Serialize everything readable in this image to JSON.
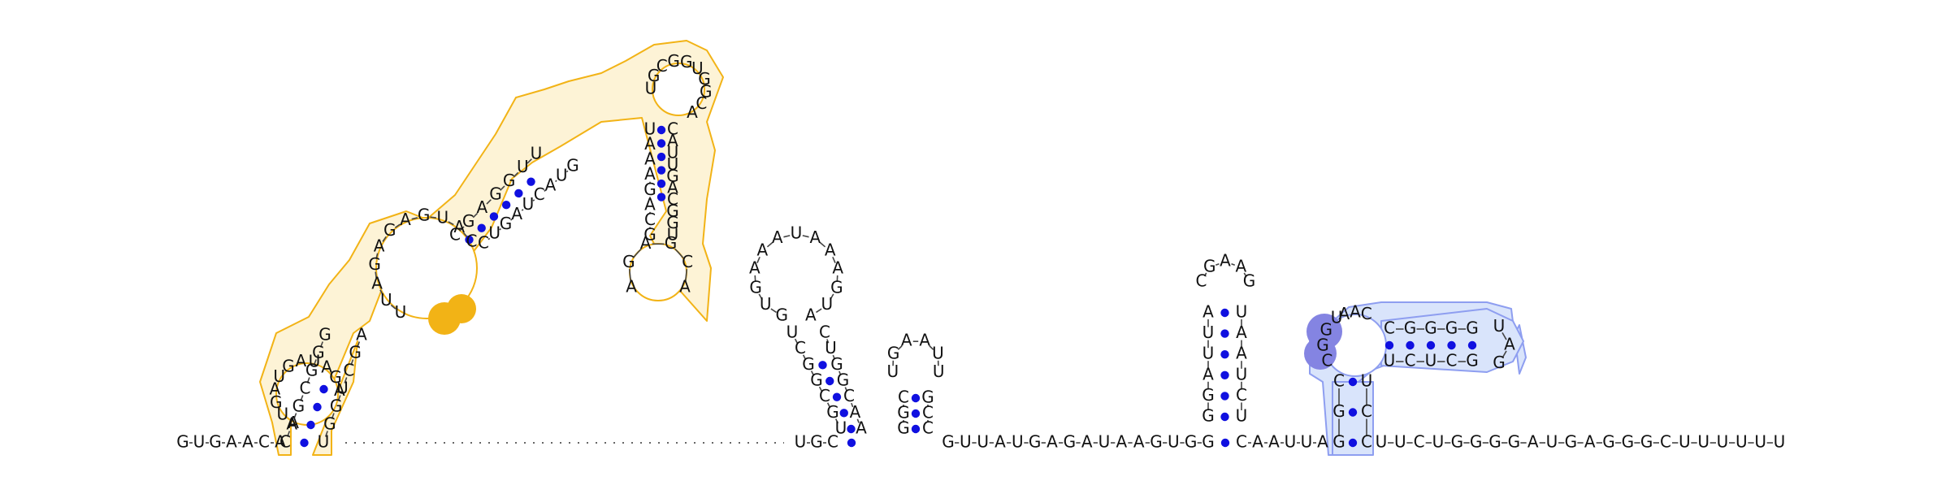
{
  "diagram": {
    "type": "rna-secondary-structure",
    "colors": {
      "orange_outline": "#f2b316",
      "orange_fill": "#fdf3d6",
      "orange_highlight": "#f2b316",
      "blue_outline": "#8e9ef0",
      "blue_fill": "#d9e4fb",
      "blue_highlight": "#8484e2",
      "pair_dot": "#1010e0"
    },
    "five_prime_tail": "GUGAACA",
    "three_prime_tail": "UUCUGGGGAUGAGGGCUUUUUU",
    "interior_linkers": [
      "UGC",
      "GUUAUGAGAUAAGUGG",
      "CAAUUA"
    ],
    "motifs": [
      {
        "name": "orange-domain",
        "color": "orange",
        "highlighted": "CCU",
        "stems": [
          {
            "five": "CAGCGGG",
            "three": "UGGUCGA"
          },
          {
            "five": "CGAGGUU",
            "three": "CUGAUCAUG"
          },
          {
            "five": "UAAAGACG",
            "three": "CAUUGACGGU"
          }
        ],
        "loops": [
          "AUGAUGAUAGA",
          "UUAGAGAGUAC",
          "UGCGGUGGCA"
        ]
      },
      {
        "name": "hairpin-a",
        "color": "none",
        "stem": {
          "five": "UGCGGCU",
          "three": "AACGGUC"
        },
        "loop": "GUGAAAUAAAGUA"
      },
      {
        "name": "hairpin-b",
        "color": "none",
        "stem": {
          "five": "GGC",
          "three": "CCG"
        },
        "loop": "UGAAUU"
      },
      {
        "name": "hairpin-c",
        "color": "none",
        "stem": {
          "five": "GGAUUA",
          "three": "UCUAAU"
        },
        "loop": "CGAAG"
      },
      {
        "name": "blue-domain",
        "color": "blue",
        "highlighted": "CGGU",
        "stems": [
          {
            "five": "GGC",
            "three": "CCU"
          },
          {
            "five": "CGGGG",
            "three": "UCUCG"
          }
        ],
        "loops": [
          "AAC",
          "UAG"
        ]
      }
    ]
  }
}
